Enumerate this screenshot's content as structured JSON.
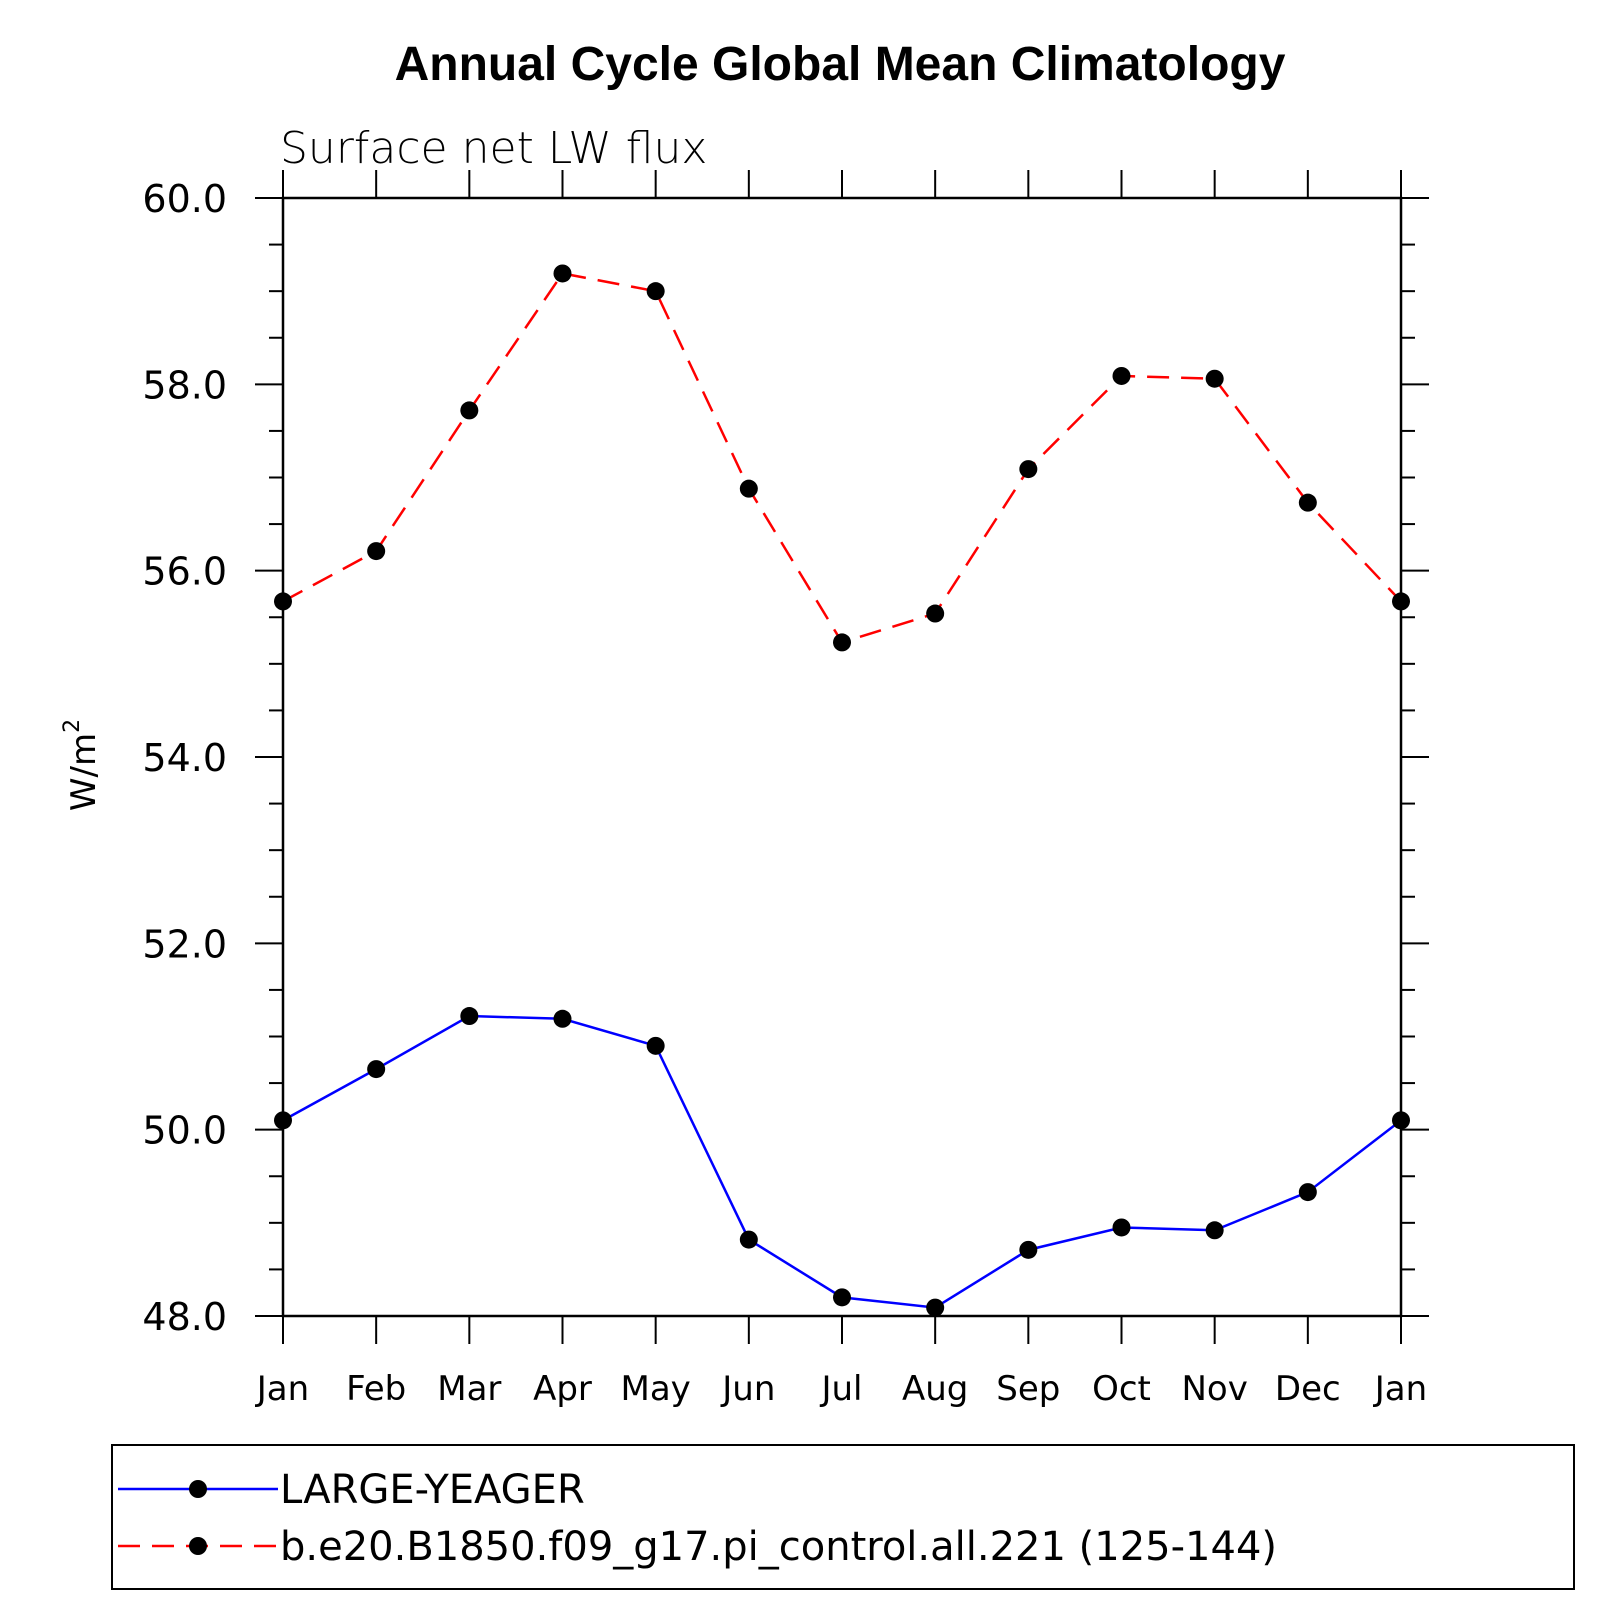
{
  "chart_data": {
    "type": "line",
    "title": "Annual Cycle Global Mean Climatology",
    "subtitle": "Surface net LW flux",
    "ylabel_base": "W/m",
    "ylabel_sup": "2",
    "xlabel": "",
    "categories": [
      "Jan",
      "Feb",
      "Mar",
      "Apr",
      "May",
      "Jun",
      "Jul",
      "Aug",
      "Sep",
      "Oct",
      "Nov",
      "Dec",
      "Jan"
    ],
    "ylim": [
      48.0,
      60.0
    ],
    "yticks": [
      "48.0",
      "50.0",
      "52.0",
      "54.0",
      "56.0",
      "58.0",
      "60.0"
    ],
    "grid": false,
    "legend_position": "bottom",
    "series": [
      {
        "name": "LARGE-YEAGER",
        "color": "#0000ff",
        "dash": "solid",
        "values": [
          50.1,
          50.65,
          51.22,
          51.19,
          50.9,
          48.82,
          48.2,
          48.09,
          48.71,
          48.95,
          48.92,
          49.33,
          50.1
        ]
      },
      {
        "name": "b.e20.B1850.f09_g17.pi_control.all.221 (125-144)",
        "color": "#ff0000",
        "dash": "dashed",
        "values": [
          55.67,
          56.21,
          57.72,
          59.19,
          59.0,
          56.88,
          55.23,
          55.54,
          57.09,
          58.09,
          58.06,
          56.73,
          55.67
        ]
      }
    ]
  }
}
